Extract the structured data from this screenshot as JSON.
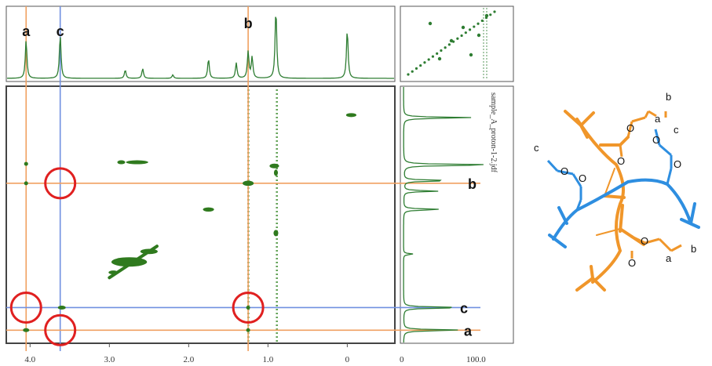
{
  "chart_data": {
    "type": "scatter",
    "subtype": "2D NMR correlation spectrum (NOESY-type) with 1H projection spectra",
    "x_axis": {
      "reversed": true,
      "xlim": [
        4.3,
        -0.6
      ],
      "ticks": [
        "4.0",
        "3.0",
        "2.0",
        "1.0",
        "0"
      ]
    },
    "y_axis": {
      "reversed": true,
      "ylim": [
        -0.6,
        4.3
      ]
    },
    "right_projection_axis": {
      "ticks": [
        "0",
        "100.0"
      ]
    },
    "file_label": "sample_A_proton-1-2.jdf",
    "proton_labels": [
      {
        "name": "a",
        "ppm": 4.05
      },
      {
        "name": "c",
        "ppm": 3.62
      },
      {
        "name": "b",
        "ppm": 1.25
      }
    ],
    "top_spectrum_peaks": [
      {
        "ppm": 4.05,
        "intensity": 0.55
      },
      {
        "ppm": 3.62,
        "intensity": 0.62
      },
      {
        "ppm": 2.8,
        "intensity": 0.12
      },
      {
        "ppm": 2.58,
        "intensity": 0.14
      },
      {
        "ppm": 2.2,
        "intensity": 0.05
      },
      {
        "ppm": 1.75,
        "intensity": 0.28
      },
      {
        "ppm": 1.4,
        "intensity": 0.22
      },
      {
        "ppm": 1.25,
        "intensity": 0.38
      },
      {
        "ppm": 1.2,
        "intensity": 0.3
      },
      {
        "ppm": 0.9,
        "intensity": 1.0
      },
      {
        "ppm": 0.0,
        "intensity": 0.7
      }
    ],
    "cross_peaks": [
      {
        "x": -0.05,
        "y": -0.05,
        "w": 0.13,
        "h": 0.07
      },
      {
        "x": 0.92,
        "y": 0.92,
        "w": 0.12,
        "h": 0.09
      },
      {
        "x": 1.25,
        "y": 1.25,
        "w": 0.14,
        "h": 0.1
      },
      {
        "x": 1.75,
        "y": 1.75,
        "w": 0.14,
        "h": 0.08
      },
      {
        "x": 2.65,
        "y": 0.85,
        "w": 0.28,
        "h": 0.05
      },
      {
        "x": 2.85,
        "y": 0.85,
        "w": 0.1,
        "h": 0.04
      },
      {
        "x": 2.75,
        "y": 2.75,
        "w": 0.45,
        "h": 0.18
      },
      {
        "x": 2.5,
        "y": 2.55,
        "w": 0.22,
        "h": 0.1
      },
      {
        "x": 2.95,
        "y": 2.95,
        "w": 0.12,
        "h": 0.07
      },
      {
        "x": 3.6,
        "y": 3.62,
        "w": 0.1,
        "h": 0.06
      },
      {
        "x": 4.05,
        "y": 1.25,
        "w": 0.05,
        "h": 0.05
      },
      {
        "x": 4.05,
        "y": 0.88,
        "w": 0.05,
        "h": 0.04
      },
      {
        "x": 4.05,
        "y": 4.05,
        "w": 0.08,
        "h": 0.06
      },
      {
        "x": 1.25,
        "y": 4.05,
        "w": 0.04,
        "h": 0.05
      },
      {
        "x": 1.25,
        "y": 3.62,
        "w": 0.04,
        "h": 0.04
      },
      {
        "x": 0.9,
        "y": 2.2,
        "w": 0.06,
        "h": 0.12
      },
      {
        "x": 0.9,
        "y": 1.05,
        "w": 0.05,
        "h": 0.12
      }
    ],
    "guide_lines": [
      {
        "axis": "x",
        "ppm": 4.05,
        "color": "#f0a060"
      },
      {
        "axis": "x",
        "ppm": 3.62,
        "color": "#7090e0"
      },
      {
        "axis": "x",
        "ppm": 1.25,
        "color": "#f0a060"
      },
      {
        "axis": "y",
        "ppm": 1.25,
        "color": "#f0a060"
      },
      {
        "axis": "y",
        "ppm": 3.62,
        "color": "#7090e0"
      },
      {
        "axis": "y",
        "ppm": 4.05,
        "color": "#f0a060"
      }
    ],
    "highlight_circles": [
      {
        "x": 3.62,
        "y": 1.25
      },
      {
        "x": 4.05,
        "y": 3.62
      },
      {
        "x": 3.62,
        "y": 4.05
      },
      {
        "x": 1.25,
        "y": 3.62
      }
    ],
    "right_spectrum_peaks": [
      {
        "ppm": 0.0,
        "intensity": 0.7
      },
      {
        "ppm": 0.9,
        "intensity": 1.0
      },
      {
        "ppm": 1.2,
        "intensity": 0.5
      },
      {
        "ppm": 1.4,
        "intensity": 0.35
      },
      {
        "ppm": 1.75,
        "intensity": 0.4
      },
      {
        "ppm": 2.6,
        "intensity": 0.1
      },
      {
        "ppm": 3.62,
        "intensity": 0.65
      },
      {
        "ppm": 4.05,
        "intensity": 0.6
      }
    ]
  },
  "molecule": {
    "labels": [
      "a",
      "b",
      "c",
      "c",
      "a",
      "b"
    ]
  },
  "colors": {
    "spectrum_green": "#2e7d32",
    "peak_green": "#2f7a1e",
    "orange": "#f0962a",
    "blue": "#2e8ee0",
    "circle_red": "#e02020"
  }
}
